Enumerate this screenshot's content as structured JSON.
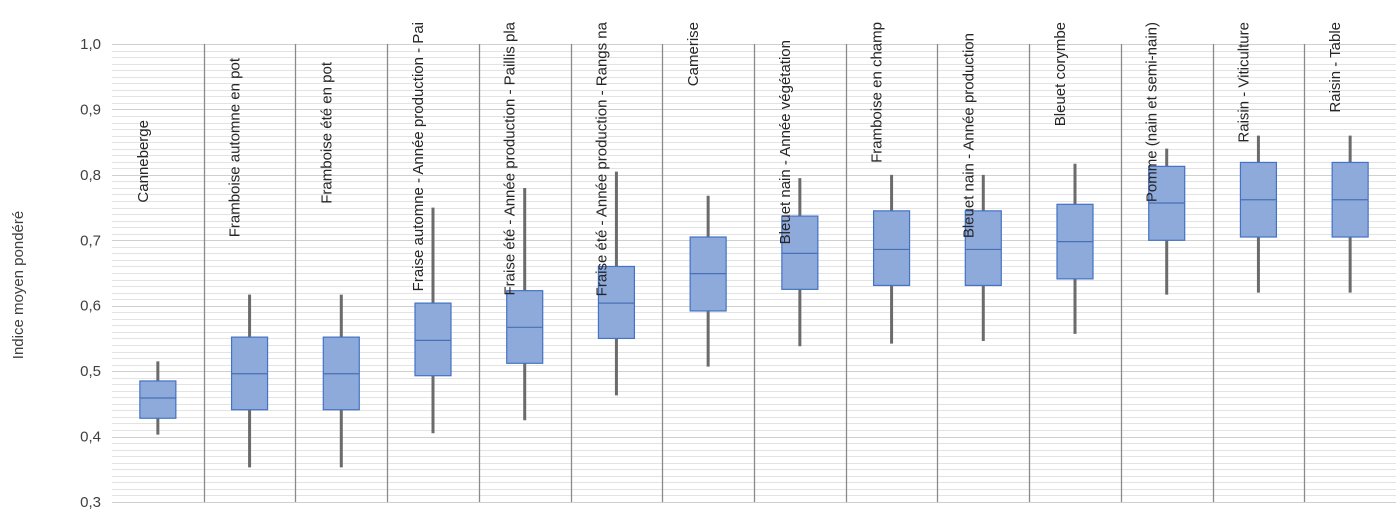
{
  "chart_data": {
    "type": "box",
    "ylabel": "Indice moyen pondéré",
    "ylim": [
      0.3,
      1.0
    ],
    "yticks": [
      "0,3",
      "0,4",
      "0,5",
      "0,6",
      "0,7",
      "0,8",
      "0,9",
      "1,0"
    ],
    "grid": true,
    "colors": {
      "box_fill": "#8eaadb",
      "box_stroke": "#4472c4",
      "whisker": "#6b6b6b"
    },
    "categories": [
      "Canneberge",
      "Framboise automne en pot",
      "Framboise été en pot",
      "Fraise automne - Année production - Pai",
      "Fraise été - Année production - Paillis pla",
      "Fraise été - Année production - Rangs na",
      "Camerise",
      "Bleuet nain - Année végétation",
      "Framboise en champ",
      "Bleuet nain - Année production",
      "Bleuet corymbe",
      "Pomme (nain et semi-nain)",
      "Raisin - Viticulture",
      "Raisin - Table"
    ],
    "series": [
      {
        "min": [
          0.403,
          0.353,
          0.353,
          0.405,
          0.425,
          0.463,
          0.507,
          0.538,
          0.542,
          0.546,
          0.557,
          0.617,
          0.62,
          0.62
        ],
        "q1": [
          0.428,
          0.441,
          0.441,
          0.493,
          0.512,
          0.55,
          0.592,
          0.625,
          0.631,
          0.631,
          0.641,
          0.7,
          0.705,
          0.705
        ],
        "median": [
          0.459,
          0.496,
          0.496,
          0.547,
          0.567,
          0.604,
          0.649,
          0.68,
          0.686,
          0.686,
          0.698,
          0.757,
          0.762,
          0.762
        ],
        "q3": [
          0.485,
          0.552,
          0.552,
          0.604,
          0.623,
          0.66,
          0.705,
          0.737,
          0.745,
          0.745,
          0.755,
          0.813,
          0.819,
          0.819
        ],
        "max": [
          0.515,
          0.617,
          0.617,
          0.75,
          0.78,
          0.805,
          0.768,
          0.795,
          0.8,
          0.8,
          0.817,
          0.84,
          0.86,
          0.86
        ]
      }
    ]
  }
}
